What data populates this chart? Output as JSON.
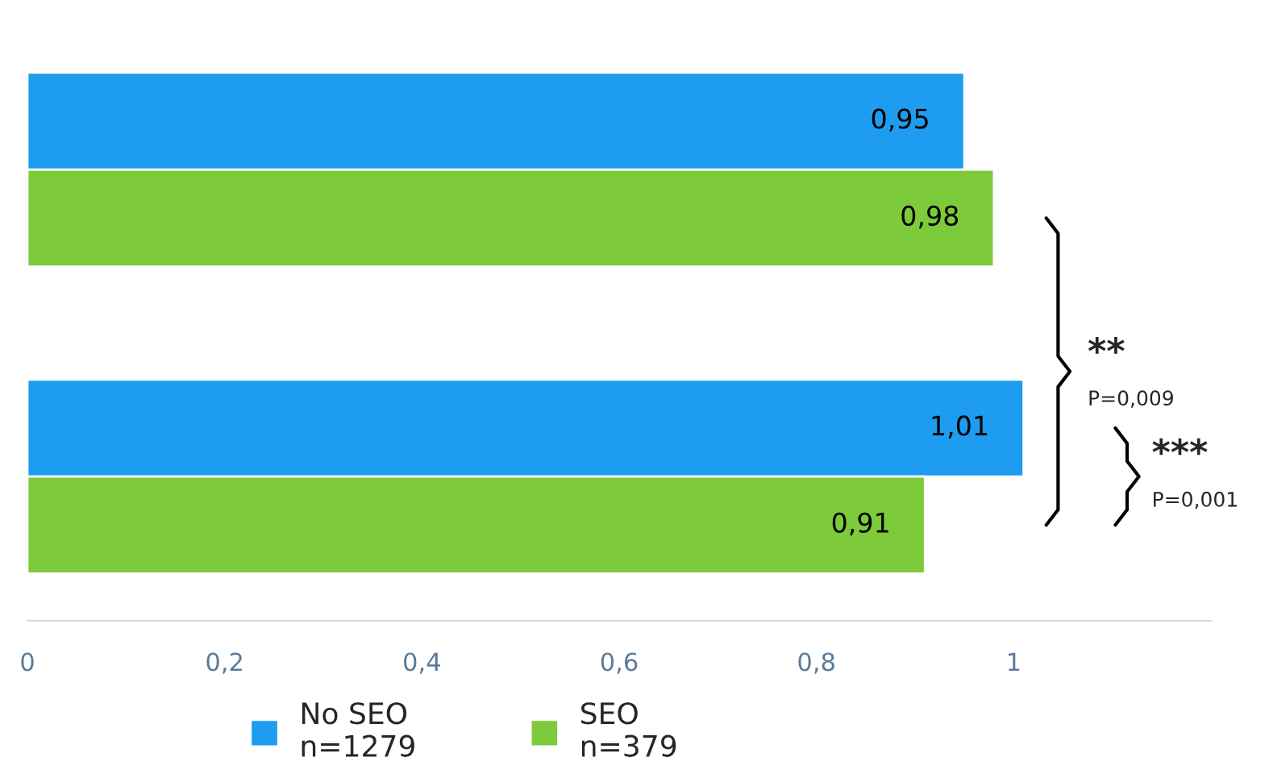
{
  "chart_data": {
    "type": "bar",
    "orientation": "horizontal",
    "categories": [
      null,
      null
    ],
    "series": [
      {
        "name": "No SEO\nn=1279",
        "color": "#1e9cf0",
        "values": [
          0.95,
          1.01
        ],
        "value_labels": [
          "0,95",
          "1,01"
        ]
      },
      {
        "name": "SEO\nn=379",
        "color": "#7dca3a",
        "values": [
          0.98,
          0.91
        ],
        "value_labels": [
          "0,98",
          "0,91"
        ]
      }
    ],
    "xlim": [
      0,
      1.2
    ],
    "xticks": [
      0,
      {
        "value": 0.2,
        "label": "0,2"
      },
      {
        "value": 0.4,
        "label": "0,4"
      },
      {
        "value": 0.6,
        "label": "0,6"
      },
      {
        "value": 0.8,
        "label": "0,8"
      },
      1
    ],
    "annotations": [
      "**",
      "P=0,009",
      "***",
      "P=0,001"
    ],
    "legend": "bottom",
    "grid": false
  }
}
